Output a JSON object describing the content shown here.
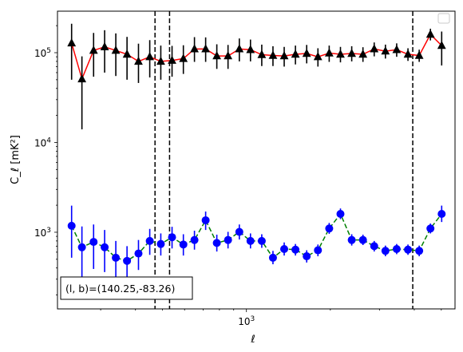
{
  "chart_data": {
    "type": "scatter",
    "x_scale": "log",
    "y_scale": "log",
    "xlim": [
      210,
      5600
    ],
    "ylim": [
      140,
      290000
    ],
    "xlabel": "ℓ",
    "ylabel": "C_ℓ  [mK²]",
    "x_tick_labels": [
      {
        "value": 1000,
        "base": "10",
        "exponent": "3"
      }
    ],
    "y_tick_labels": [
      {
        "value": 1000,
        "base": "10",
        "exponent": "3"
      },
      {
        "value": 10000,
        "base": "10",
        "exponent": "4"
      },
      {
        "value": 100000,
        "base": "10",
        "exponent": "5"
      }
    ],
    "legend": {
      "location": "upper-right",
      "entries": []
    },
    "annotation": {
      "text": "(l, b)=(140.25,-83.26)",
      "location": "lower-left"
    },
    "vertical_lines": [
      {
        "x": 470,
        "style": "dashed",
        "color": "#000000"
      },
      {
        "x": 530,
        "style": "dashed",
        "color": "#000000"
      },
      {
        "x": 3950,
        "style": "dashed",
        "color": "#000000"
      }
    ],
    "series": [
      {
        "marker": "triangle-up",
        "marker_color": "#000000",
        "line_color": "#ff0000",
        "line_style": "solid",
        "x": [
          236,
          257,
          283,
          310,
          340,
          373,
          410,
          450,
          493,
          541,
          594,
          651,
          714,
          783,
          859,
          943,
          1034,
          1135,
          1245,
          1366,
          1499,
          1645,
          1805,
          1981,
          2174,
          2386,
          2618,
          2873,
          3152,
          3459,
          3797,
          4166,
          4571,
          5016
        ],
        "y": [
          128000,
          51000,
          106000,
          116000,
          106000,
          96000,
          80000,
          90000,
          80000,
          82000,
          86000,
          110000,
          110000,
          92000,
          92000,
          110000,
          108000,
          95000,
          93000,
          92000,
          96000,
          98000,
          90000,
          99000,
          96000,
          98000,
          96000,
          110000,
          104000,
          108000,
          96000,
          93000,
          160000,
          120000
        ],
        "y_err_low": [
          78000,
          37000,
          52000,
          56000,
          51000,
          46000,
          34000,
          37000,
          30000,
          28000,
          28000,
          31000,
          31000,
          26000,
          26000,
          30000,
          28000,
          24000,
          22000,
          22000,
          22000,
          22000,
          20000,
          20000,
          18000,
          18000,
          17000,
          19000,
          18000,
          18000,
          15000,
          14000,
          23000,
          48000
        ],
        "y_err_high": [
          82000,
          40000,
          60000,
          62000,
          58000,
          54000,
          46000,
          48000,
          40000,
          37000,
          35000,
          39000,
          38000,
          32000,
          30000,
          34000,
          32000,
          28000,
          25000,
          24000,
          24000,
          24000,
          22000,
          21000,
          20000,
          20000,
          19000,
          20000,
          19000,
          19000,
          16000,
          15000,
          25000,
          52000
        ]
      },
      {
        "marker": "circle",
        "marker_color": "#0000ff",
        "line_color": "#008000",
        "line_style": "dashed",
        "x": [
          236,
          257,
          283,
          310,
          340,
          373,
          410,
          450,
          493,
          541,
          594,
          651,
          714,
          783,
          859,
          943,
          1034,
          1135,
          1245,
          1366,
          1499,
          1645,
          1805,
          1981,
          2174,
          2386,
          2618,
          2873,
          3152,
          3459,
          3797,
          4166,
          4571,
          5016
        ],
        "y": [
          1180,
          680,
          780,
          680,
          520,
          480,
          580,
          800,
          740,
          880,
          730,
          820,
          1360,
          760,
          820,
          1010,
          800,
          800,
          520,
          650,
          640,
          540,
          630,
          1100,
          1600,
          820,
          820,
          700,
          620,
          650,
          640,
          620,
          1100,
          1600
        ],
        "y_err_low": [
          660,
          380,
          390,
          320,
          240,
          190,
          200,
          240,
          190,
          220,
          180,
          180,
          300,
          150,
          160,
          180,
          140,
          130,
          80,
          100,
          90,
          80,
          90,
          140,
          200,
          110,
          100,
          90,
          80,
          80,
          80,
          80,
          130,
          300
        ],
        "y_err_high": [
          800,
          480,
          440,
          380,
          280,
          220,
          240,
          290,
          230,
          270,
          220,
          220,
          340,
          180,
          190,
          210,
          170,
          150,
          100,
          120,
          100,
          90,
          100,
          170,
          240,
          130,
          120,
          100,
          90,
          90,
          90,
          90,
          150,
          380
        ]
      }
    ]
  }
}
